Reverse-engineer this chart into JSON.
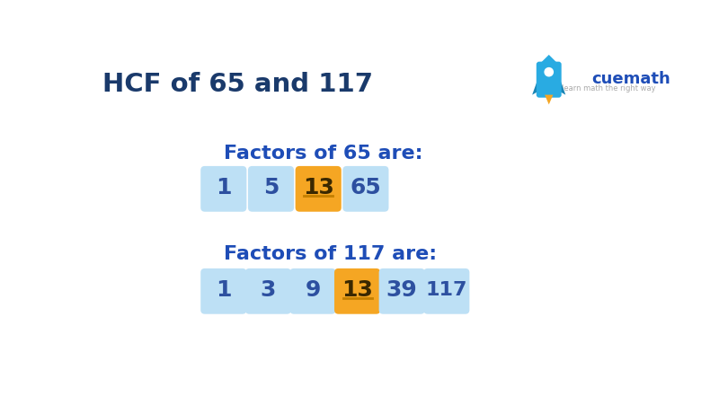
{
  "title": "HCF of 65 and 117",
  "title_color": "#1a3a6b",
  "bg_color": "#ffffff",
  "row1_label": "Factors of 65 are:",
  "row2_label": "Factors of 117 are:",
  "label_color": "#1e4db7",
  "row1_factors": [
    "1",
    "5",
    "13",
    "65"
  ],
  "row1_highlight": [
    false,
    false,
    true,
    false
  ],
  "row2_factors": [
    "1",
    "3",
    "9",
    "13",
    "39",
    "117"
  ],
  "row2_highlight": [
    false,
    false,
    false,
    true,
    false,
    false
  ],
  "box_normal_color": "#bde0f5",
  "box_highlight_color": "#f5a623",
  "box_text_normal_color": "#2d50a0",
  "box_text_highlight_color": "#3a2800",
  "underline_color": "#c47f00"
}
